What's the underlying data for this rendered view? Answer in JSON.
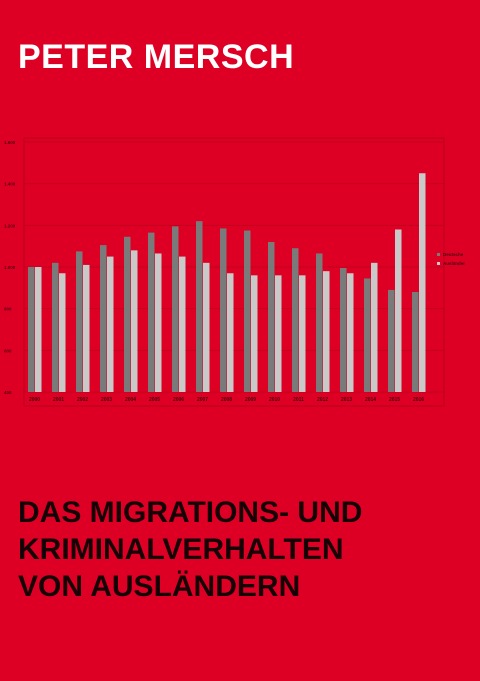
{
  "cover": {
    "author": "PETER MERSCH",
    "title_lines": [
      "DAS MIGRATIONS- UND",
      "KRIMINALVERHALTEN",
      "VON AUSLÄNDERN"
    ]
  },
  "colors": {
    "background": "#de0024",
    "title_text": "#140006",
    "series_deutsche": "#7a7a7a",
    "series_auslaender": "#c9c9c9"
  },
  "chart_data": {
    "type": "bar",
    "categories": [
      "2000",
      "2001",
      "2002",
      "2003",
      "2004",
      "2005",
      "2006",
      "2007",
      "2008",
      "2009",
      "2010",
      "2011",
      "2012",
      "2013",
      "2014",
      "2015",
      "2016"
    ],
    "series": [
      {
        "name": "Deutsche",
        "values": [
          1000,
          1020,
          1075,
          1105,
          1145,
          1165,
          1195,
          1220,
          1185,
          1175,
          1120,
          1090,
          1065,
          995,
          945,
          890,
          880
        ]
      },
      {
        "name": "Ausländer",
        "values": [
          1000,
          970,
          1010,
          1050,
          1080,
          1065,
          1050,
          1020,
          970,
          960,
          960,
          960,
          980,
          970,
          1020,
          1180,
          1450
        ]
      }
    ],
    "ylim": [
      400,
      1600
    ],
    "yticks": [
      "400",
      "600",
      "800",
      "1.000",
      "1.200",
      "1.400",
      "1.600"
    ],
    "grid": true,
    "legend": "right",
    "title": "",
    "xlabel": "",
    "ylabel": ""
  }
}
